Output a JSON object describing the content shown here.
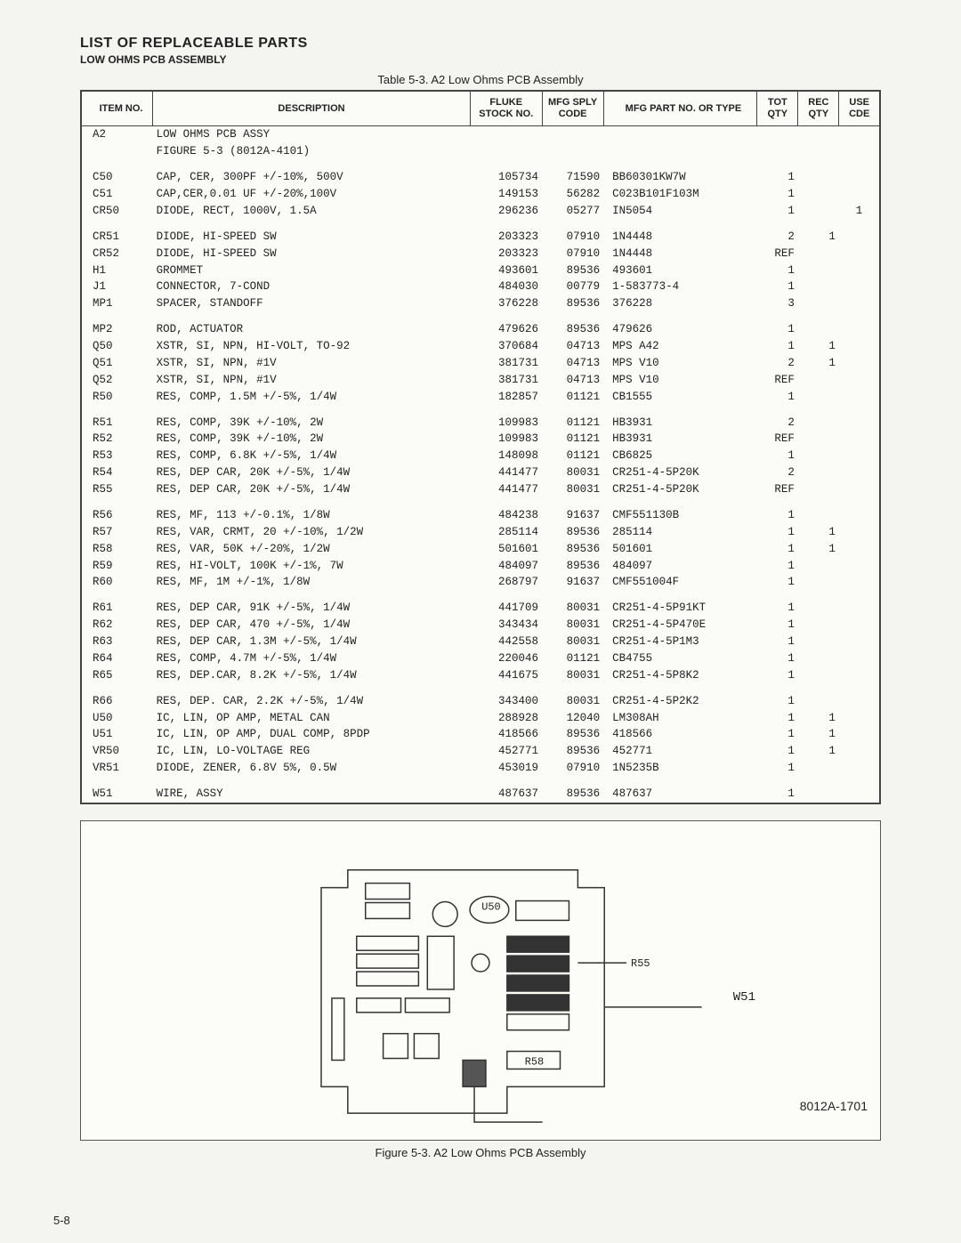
{
  "header": {
    "title": "LIST OF REPLACEABLE PARTS",
    "subtitle": "LOW OHMS PCB ASSEMBLY"
  },
  "table": {
    "caption": "Table 5-3. A2 Low Ohms PCB Assembly",
    "columns": [
      "ITEM NO.",
      "DESCRIPTION",
      "FLUKE STOCK NO.",
      "MFG SPLY CODE",
      "MFG PART NO. OR TYPE",
      "TOT QTY",
      "REC QTY",
      "USE CDE"
    ],
    "groups": [
      [
        {
          "item": "A2",
          "desc": "LOW OHMS PCB ASSY",
          "stock": "",
          "sply": "",
          "part": "",
          "tqty": "",
          "rqty": "",
          "use": ""
        },
        {
          "item": "",
          "desc": "FIGURE 5-3 (8012A-4101)",
          "stock": "",
          "sply": "",
          "part": "",
          "tqty": "",
          "rqty": "",
          "use": ""
        }
      ],
      [
        {
          "item": "C50",
          "desc": "CAP, CER, 300PF +/-10%, 500V",
          "stock": "105734",
          "sply": "71590",
          "part": "BB60301KW7W",
          "tqty": "1",
          "rqty": "",
          "use": ""
        },
        {
          "item": "C51",
          "desc": "CAP,CER,0.01 UF +/-20%,100V",
          "stock": "149153",
          "sply": "56282",
          "part": "C023B101F103M",
          "tqty": "1",
          "rqty": "",
          "use": ""
        },
        {
          "item": "CR50",
          "desc": "DIODE, RECT, 1000V, 1.5A",
          "stock": "296236",
          "sply": "05277",
          "part": "IN5054",
          "tqty": "1",
          "rqty": "",
          "use": "1"
        }
      ],
      [
        {
          "item": "CR51",
          "desc": "DIODE, HI-SPEED SW",
          "stock": "203323",
          "sply": "07910",
          "part": "1N4448",
          "tqty": "2",
          "rqty": "1",
          "use": ""
        },
        {
          "item": "CR52",
          "desc": "DIODE, HI-SPEED SW",
          "stock": "203323",
          "sply": "07910",
          "part": "1N4448",
          "tqty": "REF",
          "rqty": "",
          "use": ""
        },
        {
          "item": "H1",
          "desc": "GROMMET",
          "stock": "493601",
          "sply": "89536",
          "part": "493601",
          "tqty": "1",
          "rqty": "",
          "use": ""
        },
        {
          "item": "J1",
          "desc": "CONNECTOR, 7-COND",
          "stock": "484030",
          "sply": "00779",
          "part": "1-583773-4",
          "tqty": "1",
          "rqty": "",
          "use": ""
        },
        {
          "item": "MP1",
          "desc": "SPACER, STANDOFF",
          "stock": "376228",
          "sply": "89536",
          "part": "376228",
          "tqty": "3",
          "rqty": "",
          "use": ""
        }
      ],
      [
        {
          "item": "MP2",
          "desc": "ROD, ACTUATOR",
          "stock": "479626",
          "sply": "89536",
          "part": "479626",
          "tqty": "1",
          "rqty": "",
          "use": ""
        },
        {
          "item": "Q50",
          "desc": "XSTR, SI, NPN, HI-VOLT, TO-92",
          "stock": "370684",
          "sply": "04713",
          "part": "MPS A42",
          "tqty": "1",
          "rqty": "1",
          "use": ""
        },
        {
          "item": "Q51",
          "desc": "XSTR, SI, NPN, #1V",
          "stock": "381731",
          "sply": "04713",
          "part": "MPS V10",
          "tqty": "2",
          "rqty": "1",
          "use": ""
        },
        {
          "item": "Q52",
          "desc": "XSTR, SI, NPN, #1V",
          "stock": "381731",
          "sply": "04713",
          "part": "MPS V10",
          "tqty": "REF",
          "rqty": "",
          "use": ""
        },
        {
          "item": "R50",
          "desc": "RES, COMP, 1.5M +/-5%, 1/4W",
          "stock": "182857",
          "sply": "01121",
          "part": "CB1555",
          "tqty": "1",
          "rqty": "",
          "use": ""
        }
      ],
      [
        {
          "item": "R51",
          "desc": "RES, COMP, 39K +/-10%, 2W",
          "stock": "109983",
          "sply": "01121",
          "part": "HB3931",
          "tqty": "2",
          "rqty": "",
          "use": ""
        },
        {
          "item": "R52",
          "desc": "RES, COMP, 39K +/-10%, 2W",
          "stock": "109983",
          "sply": "01121",
          "part": "HB3931",
          "tqty": "REF",
          "rqty": "",
          "use": ""
        },
        {
          "item": "R53",
          "desc": "RES, COMP, 6.8K +/-5%, 1/4W",
          "stock": "148098",
          "sply": "01121",
          "part": "CB6825",
          "tqty": "1",
          "rqty": "",
          "use": ""
        },
        {
          "item": "R54",
          "desc": "RES, DEP CAR, 20K +/-5%, 1/4W",
          "stock": "441477",
          "sply": "80031",
          "part": "CR251-4-5P20K",
          "tqty": "2",
          "rqty": "",
          "use": ""
        },
        {
          "item": "R55",
          "desc": "RES, DEP CAR, 20K +/-5%, 1/4W",
          "stock": "441477",
          "sply": "80031",
          "part": "CR251-4-5P20K",
          "tqty": "REF",
          "rqty": "",
          "use": ""
        }
      ],
      [
        {
          "item": "R56",
          "desc": "RES, MF, 113 +/-0.1%, 1/8W",
          "stock": "484238",
          "sply": "91637",
          "part": "CMF551130B",
          "tqty": "1",
          "rqty": "",
          "use": ""
        },
        {
          "item": "R57",
          "desc": "RES, VAR, CRMT, 20 +/-10%, 1/2W",
          "stock": "285114",
          "sply": "89536",
          "part": "285114",
          "tqty": "1",
          "rqty": "1",
          "use": ""
        },
        {
          "item": "R58",
          "desc": "RES, VAR, 50K +/-20%, 1/2W",
          "stock": "501601",
          "sply": "89536",
          "part": "501601",
          "tqty": "1",
          "rqty": "1",
          "use": ""
        },
        {
          "item": "R59",
          "desc": "RES, HI-VOLT, 100K +/-1%, 7W",
          "stock": "484097",
          "sply": "89536",
          "part": "484097",
          "tqty": "1",
          "rqty": "",
          "use": ""
        },
        {
          "item": "R60",
          "desc": "RES, MF, 1M +/-1%, 1/8W",
          "stock": "268797",
          "sply": "91637",
          "part": "CMF551004F",
          "tqty": "1",
          "rqty": "",
          "use": ""
        }
      ],
      [
        {
          "item": "R61",
          "desc": "RES, DEP CAR, 91K +/-5%, 1/4W",
          "stock": "441709",
          "sply": "80031",
          "part": "CR251-4-5P91KT",
          "tqty": "1",
          "rqty": "",
          "use": ""
        },
        {
          "item": "R62",
          "desc": "RES, DEP CAR, 470 +/-5%, 1/4W",
          "stock": "343434",
          "sply": "80031",
          "part": "CR251-4-5P470E",
          "tqty": "1",
          "rqty": "",
          "use": ""
        },
        {
          "item": "R63",
          "desc": "RES, DEP CAR, 1.3M +/-5%, 1/4W",
          "stock": "442558",
          "sply": "80031",
          "part": "CR251-4-5P1M3",
          "tqty": "1",
          "rqty": "",
          "use": ""
        },
        {
          "item": "R64",
          "desc": "RES, COMP, 4.7M +/-5%, 1/4W",
          "stock": "220046",
          "sply": "01121",
          "part": "CB4755",
          "tqty": "1",
          "rqty": "",
          "use": ""
        },
        {
          "item": "R65",
          "desc": "RES, DEP.CAR, 8.2K +/-5%, 1/4W",
          "stock": "441675",
          "sply": "80031",
          "part": "CR251-4-5P8K2",
          "tqty": "1",
          "rqty": "",
          "use": ""
        }
      ],
      [
        {
          "item": "R66",
          "desc": "RES, DEP. CAR, 2.2K +/-5%, 1/4W",
          "stock": "343400",
          "sply": "80031",
          "part": "CR251-4-5P2K2",
          "tqty": "1",
          "rqty": "",
          "use": ""
        },
        {
          "item": "U50",
          "desc": "IC, LIN, OP AMP, METAL CAN",
          "stock": "288928",
          "sply": "12040",
          "part": "LM308AH",
          "tqty": "1",
          "rqty": "1",
          "use": ""
        },
        {
          "item": "U51",
          "desc": "IC, LIN, OP AMP, DUAL COMP, 8PDP",
          "stock": "418566",
          "sply": "89536",
          "part": "418566",
          "tqty": "1",
          "rqty": "1",
          "use": ""
        },
        {
          "item": "VR50",
          "desc": "IC, LIN, LO-VOLTAGE REG",
          "stock": "452771",
          "sply": "89536",
          "part": "452771",
          "tqty": "1",
          "rqty": "1",
          "use": ""
        },
        {
          "item": "VR51",
          "desc": "DIODE, ZENER, 6.8V 5%, 0.5W",
          "stock": "453019",
          "sply": "07910",
          "part": "1N5235B",
          "tqty": "1",
          "rqty": "",
          "use": ""
        }
      ],
      [
        {
          "item": "W51",
          "desc": "WIRE, ASSY",
          "stock": "487637",
          "sply": "89536",
          "part": "487637",
          "tqty": "1",
          "rqty": "",
          "use": ""
        }
      ]
    ]
  },
  "figure": {
    "caption": "Figure 5-3. A2 Low Ohms PCB Assembly",
    "drawing_id": "8012A-1701",
    "wsi_label": "W51"
  },
  "page_number": "5-8"
}
